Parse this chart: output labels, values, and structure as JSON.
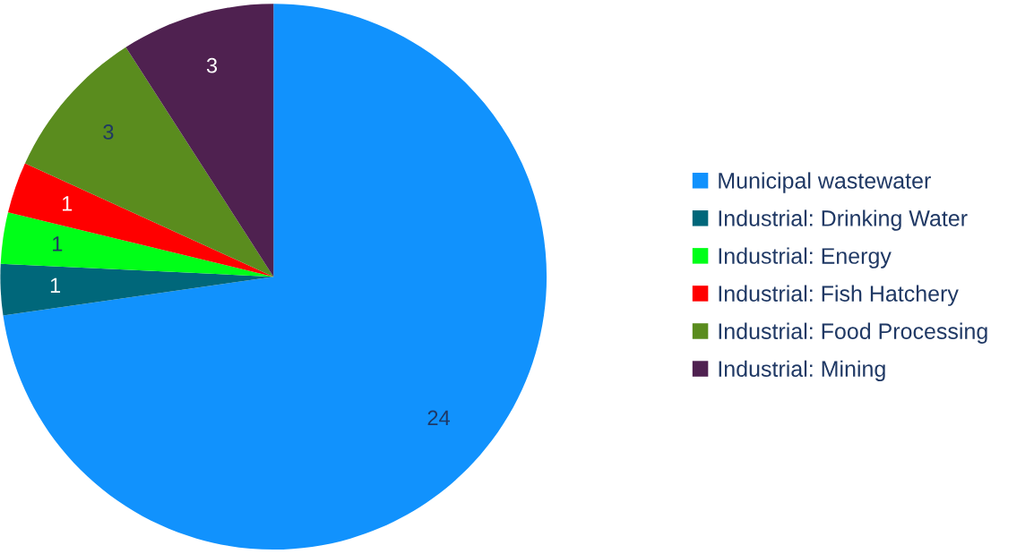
{
  "chart_data": {
    "type": "pie",
    "categories": [
      "Municipal wastewater",
      "Industrial: Drinking Water",
      "Industrial: Energy",
      "Industrial: Fish Hatchery",
      "Industrial: Food Processing",
      "Industrial: Mining"
    ],
    "values": [
      24,
      1,
      1,
      1,
      3,
      3
    ],
    "colors": [
      "#1192fd",
      "#00677a",
      "#00ff18",
      "#ff0000",
      "#5a8c1e",
      "#4f2150"
    ],
    "data_labels": true,
    "legend": "right"
  }
}
